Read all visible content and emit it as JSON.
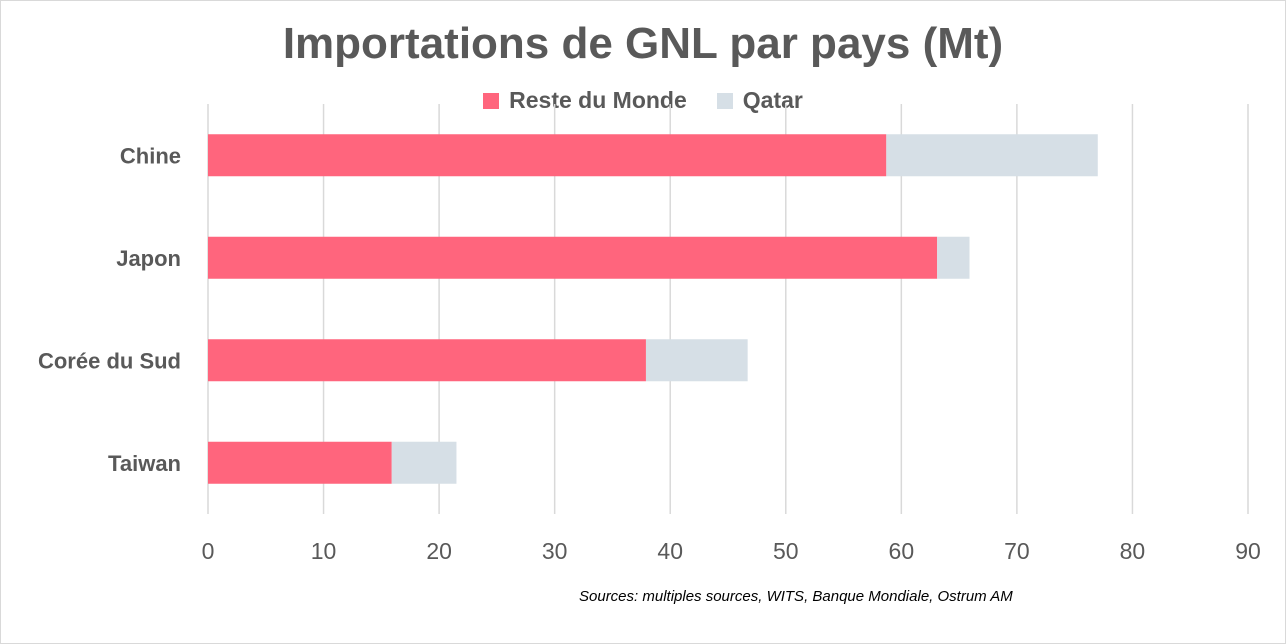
{
  "chart_data": {
    "type": "bar",
    "orientation": "horizontal",
    "stacked": true,
    "title": "Importations de GNL par pays (Mt)",
    "categories": [
      "Chine",
      "Japon",
      "Corée du Sud",
      "Taiwan"
    ],
    "series": [
      {
        "name": "Reste du Monde",
        "color": "#ff657d",
        "values": [
          58.7,
          63.1,
          37.9,
          15.9
        ]
      },
      {
        "name": "Qatar",
        "color": "#d6dfe6",
        "values": [
          18.3,
          2.8,
          8.8,
          5.6
        ]
      }
    ],
    "xlim": [
      0,
      90
    ],
    "xticks": [
      0,
      10,
      20,
      30,
      40,
      50,
      60,
      70,
      80,
      90
    ],
    "xlabel": "",
    "ylabel": "",
    "grid": "vertical",
    "legend_position": "top"
  },
  "source": "Sources: multiples sources, WITS, Banque Mondiale, Ostrum AM"
}
